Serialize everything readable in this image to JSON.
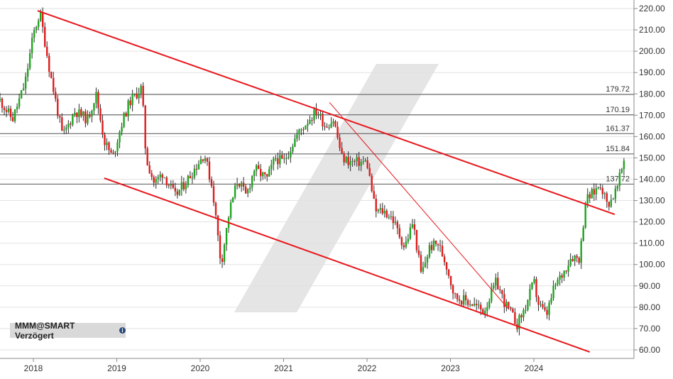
{
  "chart_data": {
    "type": "candlestick",
    "title": "",
    "ticker_label": "MMM@SMART Verzögert",
    "x_ticks": [
      "2018",
      "2019",
      "2020",
      "2021",
      "2022",
      "2023",
      "2024"
    ],
    "y_ticks": [
      60,
      70,
      80,
      90,
      100,
      110,
      120,
      130,
      140,
      150,
      160,
      170,
      180,
      190,
      200,
      210,
      220
    ],
    "y_tick_labels": [
      "60.00",
      "70.00",
      "80.00",
      "90.00",
      "100.00",
      "110.00",
      "120.00",
      "130.00",
      "140.00",
      "150.00",
      "160.00",
      "170.00",
      "180.00",
      "190.00",
      "200.00",
      "210.00",
      "220.00"
    ],
    "ylim": [
      56,
      224
    ],
    "xlim": [
      2017.6,
      2025.2
    ],
    "grid": "horizontal",
    "horizontal_levels": [
      {
        "value": 179.72,
        "label": "179.72"
      },
      {
        "value": 170.19,
        "label": "170.19"
      },
      {
        "value": 161.37,
        "label": "161.37"
      },
      {
        "value": 151.84,
        "label": "151.84"
      },
      {
        "value": 137.72,
        "label": "137.72"
      }
    ],
    "trendlines": [
      {
        "name": "upper-channel",
        "from": [
          2018.05,
          219
        ],
        "to": [
          2024.97,
          123.5
        ],
        "width": 2
      },
      {
        "name": "lower-channel",
        "from": [
          2018.85,
          140.5
        ],
        "to": [
          2024.67,
          59
        ],
        "width": 2
      },
      {
        "name": "descending-resistance",
        "from": [
          2021.55,
          176
        ],
        "to": [
          2023.7,
          79
        ],
        "width": 1
      }
    ],
    "price_path": [
      [
        2017.6,
        177
      ],
      [
        2017.75,
        168
      ],
      [
        2017.9,
        185
      ],
      [
        2018.0,
        208
      ],
      [
        2018.08,
        218
      ],
      [
        2018.2,
        190
      ],
      [
        2018.35,
        160
      ],
      [
        2018.5,
        172
      ],
      [
        2018.65,
        168
      ],
      [
        2018.75,
        180
      ],
      [
        2018.85,
        158
      ],
      [
        2018.95,
        150
      ],
      [
        2019.05,
        165
      ],
      [
        2019.15,
        176
      ],
      [
        2019.3,
        183
      ],
      [
        2019.35,
        150
      ],
      [
        2019.45,
        138
      ],
      [
        2019.55,
        143
      ],
      [
        2019.7,
        132
      ],
      [
        2019.85,
        140
      ],
      [
        2019.95,
        146
      ],
      [
        2020.05,
        152
      ],
      [
        2020.15,
        135
      ],
      [
        2020.25,
        100
      ],
      [
        2020.35,
        125
      ],
      [
        2020.45,
        140
      ],
      [
        2020.55,
        132
      ],
      [
        2020.65,
        145
      ],
      [
        2020.8,
        140
      ],
      [
        2020.9,
        150
      ],
      [
        2021.0,
        148
      ],
      [
        2021.15,
        160
      ],
      [
        2021.3,
        168
      ],
      [
        2021.4,
        172
      ],
      [
        2021.5,
        165
      ],
      [
        2021.6,
        168
      ],
      [
        2021.7,
        150
      ],
      [
        2021.8,
        148
      ],
      [
        2021.9,
        148
      ],
      [
        2022.0,
        148
      ],
      [
        2022.1,
        125
      ],
      [
        2022.2,
        125
      ],
      [
        2022.3,
        122
      ],
      [
        2022.45,
        108
      ],
      [
        2022.55,
        120
      ],
      [
        2022.65,
        95
      ],
      [
        2022.75,
        108
      ],
      [
        2022.85,
        110
      ],
      [
        2022.95,
        100
      ],
      [
        2023.05,
        85
      ],
      [
        2023.25,
        82
      ],
      [
        2023.4,
        78
      ],
      [
        2023.55,
        92
      ],
      [
        2023.65,
        82
      ],
      [
        2023.8,
        72
      ],
      [
        2023.9,
        80
      ],
      [
        2024.0,
        92
      ],
      [
        2024.05,
        82
      ],
      [
        2024.15,
        76
      ],
      [
        2024.25,
        90
      ],
      [
        2024.35,
        96
      ],
      [
        2024.45,
        104
      ],
      [
        2024.55,
        103
      ],
      [
        2024.62,
        130
      ],
      [
        2024.72,
        134
      ],
      [
        2024.8,
        138
      ],
      [
        2024.88,
        128
      ],
      [
        2024.95,
        132
      ],
      [
        2025.0,
        136
      ],
      [
        2025.08,
        149
      ]
    ]
  }
}
